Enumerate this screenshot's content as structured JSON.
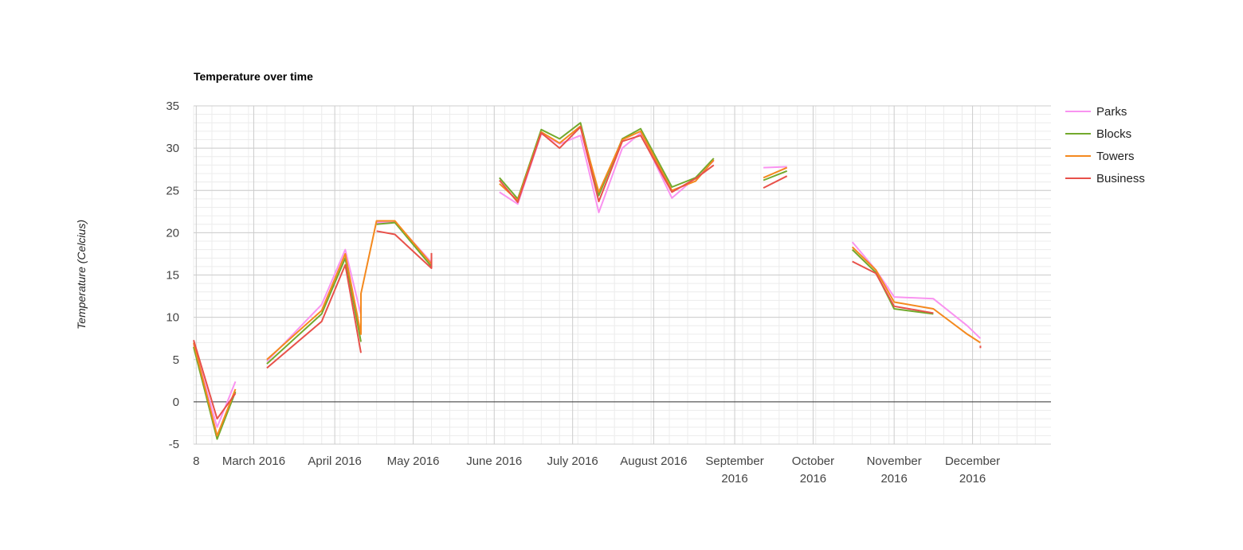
{
  "chart_data": {
    "type": "line",
    "title": "Temperature over time",
    "xlabel": "",
    "ylabel": "Temperature (Celcius)",
    "ylim": [
      -5,
      35
    ],
    "y_ticks": [
      35,
      30,
      25,
      20,
      15,
      10,
      5,
      0,
      -5
    ],
    "xlim": [
      "2016-02-07",
      "2016-12-31"
    ],
    "x_ticks": [
      {
        "date": "2016-02-08",
        "label": [
          "8"
        ]
      },
      {
        "date": "2016-03-01",
        "label": [
          "March 2016"
        ]
      },
      {
        "date": "2016-04-01",
        "label": [
          "April 2016"
        ]
      },
      {
        "date": "2016-05-01",
        "label": [
          "May 2016"
        ]
      },
      {
        "date": "2016-06-01",
        "label": [
          "June 2016"
        ]
      },
      {
        "date": "2016-07-01",
        "label": [
          "July 2016"
        ]
      },
      {
        "date": "2016-08-01",
        "label": [
          "August 2016"
        ]
      },
      {
        "date": "2016-09-01",
        "label": [
          "September",
          "2016"
        ]
      },
      {
        "date": "2016-10-01",
        "label": [
          "October",
          "2016"
        ]
      },
      {
        "date": "2016-11-01",
        "label": [
          "November",
          "2016"
        ]
      },
      {
        "date": "2016-12-01",
        "label": [
          "December",
          "2016"
        ]
      }
    ],
    "grid": true,
    "legend_position": "right",
    "series": [
      {
        "name": "Parks",
        "color": "#f993f0",
        "points": [
          [
            "2016-02-07",
            6.8
          ],
          [
            "2016-02-16",
            -3.0
          ],
          [
            "2016-02-23",
            2.4
          ],
          null,
          [
            "2016-03-06",
            4.8
          ],
          [
            "2016-03-27",
            11.5
          ],
          [
            "2016-04-05",
            18.0
          ],
          [
            "2016-04-11",
            10.3
          ],
          null,
          [
            "2016-04-17",
            21.2
          ],
          [
            "2016-04-24",
            21.3
          ],
          [
            "2016-05-08",
            16.5
          ],
          null,
          [
            "2016-06-03",
            24.8
          ],
          [
            "2016-06-10",
            23.4
          ],
          [
            "2016-06-19",
            31.7
          ],
          [
            "2016-06-26",
            30.5
          ],
          [
            "2016-07-04",
            31.5
          ],
          [
            "2016-07-11",
            22.4
          ],
          [
            "2016-07-20",
            30.0
          ],
          [
            "2016-07-27",
            31.8
          ],
          [
            "2016-08-08",
            24.1
          ],
          [
            "2016-08-17",
            26.5
          ],
          [
            "2016-08-24",
            28.5
          ],
          null,
          [
            "2016-09-12",
            27.7
          ],
          [
            "2016-09-21",
            27.8
          ],
          null,
          [
            "2016-10-16",
            18.9
          ],
          [
            "2016-10-25",
            15.6
          ],
          [
            "2016-11-01",
            12.4
          ],
          [
            "2016-11-16",
            12.2
          ],
          [
            "2016-11-29",
            9.0
          ],
          [
            "2016-12-04",
            7.5
          ]
        ]
      },
      {
        "name": "Blocks",
        "color": "#73a92d",
        "points": [
          [
            "2016-02-07",
            6.5
          ],
          [
            "2016-02-16",
            -4.4
          ],
          [
            "2016-02-23",
            1.2
          ],
          null,
          [
            "2016-03-06",
            4.5
          ],
          [
            "2016-03-27",
            10.4
          ],
          [
            "2016-04-05",
            17.0
          ],
          [
            "2016-04-11",
            7.1
          ],
          null,
          [
            "2016-04-17",
            21.0
          ],
          [
            "2016-04-24",
            21.2
          ],
          [
            "2016-05-08",
            16.0
          ],
          null,
          [
            "2016-06-03",
            26.5
          ],
          [
            "2016-06-10",
            24.0
          ],
          [
            "2016-06-19",
            32.2
          ],
          [
            "2016-06-26",
            31.1
          ],
          [
            "2016-07-04",
            33.0
          ],
          [
            "2016-07-11",
            24.4
          ],
          [
            "2016-07-20",
            31.1
          ],
          [
            "2016-07-27",
            32.3
          ],
          [
            "2016-08-08",
            25.4
          ],
          [
            "2016-08-17",
            26.5
          ],
          [
            "2016-08-24",
            28.8
          ],
          null,
          [
            "2016-09-12",
            26.2
          ],
          [
            "2016-09-21",
            27.3
          ],
          null,
          [
            "2016-10-16",
            18.0
          ],
          [
            "2016-10-25",
            15.3
          ],
          [
            "2016-11-01",
            11.0
          ],
          [
            "2016-11-16",
            10.4
          ]
        ]
      },
      {
        "name": "Towers",
        "color": "#f4891e",
        "points": [
          [
            "2016-02-07",
            7.0
          ],
          [
            "2016-02-16",
            -4.0
          ],
          [
            "2016-02-23",
            1.5
          ],
          null,
          [
            "2016-03-06",
            5.0
          ],
          [
            "2016-03-27",
            10.8
          ],
          [
            "2016-04-05",
            17.5
          ],
          [
            "2016-04-11",
            8.0
          ],
          [
            "2016-04-11",
            12.8
          ],
          [
            "2016-04-17",
            21.4
          ],
          [
            "2016-04-24",
            21.4
          ],
          [
            "2016-05-08",
            16.3
          ],
          null,
          [
            "2016-06-03",
            25.8
          ],
          [
            "2016-06-10",
            23.8
          ],
          [
            "2016-06-19",
            31.9
          ],
          [
            "2016-06-26",
            30.6
          ],
          [
            "2016-07-04",
            32.6
          ],
          [
            "2016-07-11",
            24.8
          ],
          [
            "2016-07-20",
            31.0
          ],
          [
            "2016-07-27",
            32.0
          ],
          [
            "2016-08-08",
            25.0
          ],
          [
            "2016-08-17",
            26.1
          ],
          [
            "2016-08-24",
            28.6
          ],
          null,
          [
            "2016-09-12",
            26.5
          ],
          [
            "2016-09-21",
            27.7
          ],
          null,
          [
            "2016-10-16",
            18.3
          ],
          [
            "2016-10-25",
            15.6
          ],
          [
            "2016-11-01",
            11.8
          ],
          [
            "2016-11-16",
            11.0
          ],
          [
            "2016-11-29",
            8.0
          ],
          [
            "2016-12-04",
            7.0
          ]
        ]
      },
      {
        "name": "Business",
        "color": "#e8514a",
        "points": [
          [
            "2016-02-07",
            7.3
          ],
          [
            "2016-02-16",
            -2.0
          ],
          [
            "2016-02-23",
            1.0
          ],
          null,
          [
            "2016-03-06",
            4.0
          ],
          [
            "2016-03-27",
            9.5
          ],
          [
            "2016-04-05",
            16.2
          ],
          [
            "2016-04-11",
            5.8
          ],
          null,
          [
            "2016-04-17",
            20.2
          ],
          [
            "2016-04-24",
            19.8
          ],
          [
            "2016-05-08",
            15.8
          ],
          [
            "2016-05-08",
            17.6
          ],
          null,
          [
            "2016-06-03",
            26.2
          ],
          [
            "2016-06-10",
            23.6
          ],
          [
            "2016-06-19",
            31.8
          ],
          [
            "2016-06-26",
            30.0
          ],
          [
            "2016-07-04",
            32.5
          ],
          [
            "2016-07-11",
            23.7
          ],
          [
            "2016-07-20",
            30.8
          ],
          [
            "2016-07-27",
            31.5
          ],
          [
            "2016-08-08",
            24.8
          ],
          [
            "2016-08-17",
            26.4
          ],
          [
            "2016-08-24",
            28.0
          ],
          null,
          [
            "2016-09-12",
            25.3
          ],
          [
            "2016-09-21",
            26.7
          ],
          null,
          [
            "2016-10-16",
            16.6
          ],
          [
            "2016-10-25",
            15.2
          ],
          [
            "2016-11-01",
            11.3
          ],
          [
            "2016-11-16",
            10.5
          ],
          null,
          [
            "2016-12-04",
            6.5
          ]
        ]
      }
    ]
  }
}
